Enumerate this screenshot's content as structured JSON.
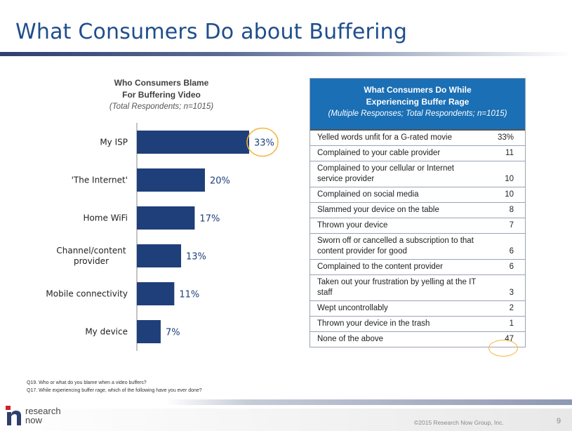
{
  "slide": {
    "title": "What Consumers Do about Buffering",
    "page_number": "9",
    "copyright": "©2015 Research Now Group, Inc.",
    "logo_text_line1": "research",
    "logo_text_line2": "now",
    "notes": [
      "Q19. Who or what do you blame when a video buffers?",
      "Q17. While experiencing buffer rage, which of the following have you ever done?"
    ]
  },
  "chart_data": {
    "type": "bar",
    "orientation": "horizontal",
    "title": "Who Consumers Blame For Buffering Video",
    "title_lines": [
      "Who Consumers Blame",
      "For Buffering Video"
    ],
    "subtitle": "(Total Respondents; n=1015)",
    "categories": [
      "My ISP",
      "'The Internet'",
      "Home WiFi",
      "Channel/content provider",
      "Mobile connectivity",
      "My device"
    ],
    "category_lines": [
      [
        "My ISP"
      ],
      [
        "'The Internet'"
      ],
      [
        "Home WiFi"
      ],
      [
        "Channel/content",
        "provider"
      ],
      [
        "Mobile connectivity"
      ],
      [
        "My device"
      ]
    ],
    "values": [
      33,
      20,
      17,
      13,
      11,
      7
    ],
    "value_labels": [
      "33%",
      "20%",
      "17%",
      "13%",
      "11%",
      "7%"
    ],
    "xlim": [
      0,
      35
    ],
    "highlighted_category": "My ISP",
    "bar_color": "#1f3f7a",
    "highlight_color": "#f4b63e"
  },
  "table": {
    "title_lines": [
      "What Consumers Do While",
      "Experiencing Buffer Rage"
    ],
    "subtitle": "(Multiple Responses; Total Respondents; n=1015)",
    "header_color": "#1a6fb5",
    "rows": [
      {
        "label": "Yelled words unfit for a G-rated movie",
        "value": "33%"
      },
      {
        "label": "Complained to your cable provider",
        "value": "11"
      },
      {
        "label": "Complained to your cellular or Internet service provider",
        "value": "10"
      },
      {
        "label": "Complained on social media",
        "value": "10"
      },
      {
        "label": "Slammed your device on the table",
        "value": "8"
      },
      {
        "label": "Thrown your device",
        "value": "7"
      },
      {
        "label": "Sworn off or cancelled a subscription to that content provider for good",
        "value": "6"
      },
      {
        "label": "Complained to the content provider",
        "value": "6"
      },
      {
        "label": "Taken out your frustration by yelling at the IT staff",
        "value": "3"
      },
      {
        "label": "Wept uncontrollably",
        "value": "2"
      },
      {
        "label": "Thrown your device in the trash",
        "value": "1"
      },
      {
        "label": "None of the above",
        "value": "47"
      }
    ]
  }
}
